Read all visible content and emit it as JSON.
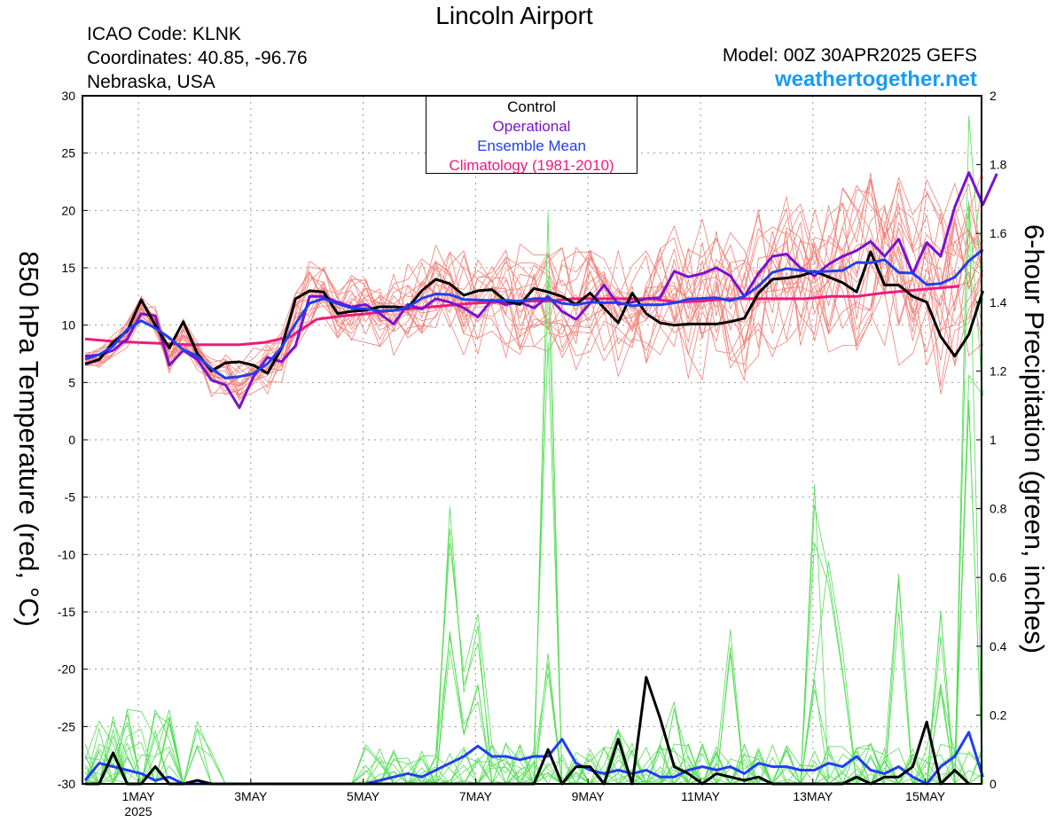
{
  "header": {
    "title": "Lincoln Airport",
    "icao": "ICAO Code: KLNK",
    "coordinates": "Coordinates: 40.85, -96.76",
    "region": "Nebraska, USA",
    "model": "Model: 00Z 30APR2025 GEFS",
    "site": "weathertogether.net"
  },
  "legend": {
    "control": "Control",
    "operational": "Operational",
    "ensemble_mean": "Ensemble Mean",
    "climatology": "Climatology (1981-2010)"
  },
  "colors": {
    "control": "#000000",
    "operational": "#7b12cf",
    "ensemble_mean": "#1f3ff0",
    "climatology": "#ee1a7c",
    "members_temp": "#f08078",
    "members_precip": "#55dd55",
    "site": "#1a9bf0"
  },
  "chart_data": {
    "type": "line",
    "ylabel": "850 hPa Temperature (red, °C)",
    "ylabel_right": "6-hour Precipitation (green, inches)",
    "ylim": [
      -30,
      30
    ],
    "ylim_right": [
      0,
      2
    ],
    "yticks": [
      "30",
      "25",
      "20",
      "15",
      "10",
      "5",
      "0",
      "-5",
      "-10",
      "-15",
      "-20",
      "-25",
      "-30"
    ],
    "yticks_right": [
      "2",
      "1.8",
      "1.6",
      "1.4",
      "1.2",
      "1",
      "0.8",
      "0.6",
      "0.4",
      "0.2",
      "0"
    ],
    "xticks": [
      "1MAY",
      "3MAY",
      "5MAY",
      "7MAY",
      "9MAY",
      "11MAY",
      "13MAY",
      "15MAY"
    ],
    "xtick_year": "2025",
    "grid": true,
    "legend_position": "top-center",
    "x_start": "30APR2025 00Z",
    "x_step_hours": 6,
    "temperature": {
      "control": [
        6.6,
        7.0,
        8.5,
        9.5,
        12.2,
        10.0,
        8.0,
        10.3,
        7.5,
        6.0,
        6.7,
        6.8,
        6.5,
        5.8,
        8.0,
        12.3,
        13.0,
        12.9,
        11.0,
        11.2,
        11.3,
        11.6,
        11.6,
        11.5,
        13.0,
        14.0,
        13.6,
        12.6,
        13.0,
        13.1,
        12.1,
        11.8,
        13.2,
        12.9,
        12.5,
        11.8,
        12.8,
        11.5,
        10.2,
        12.8,
        11.0,
        10.2,
        10.0,
        10.1,
        10.1,
        10.1,
        10.3,
        10.6,
        12.8,
        14.0,
        14.1,
        14.3,
        14.7,
        14.2,
        13.7,
        12.9,
        16.4,
        13.5,
        13.5,
        12.5,
        12.0,
        9.0,
        7.3,
        9.2,
        13.0
      ],
      "operational": [
        7.3,
        7.4,
        7.8,
        8.8,
        11.0,
        10.8,
        6.5,
        7.8,
        7.0,
        5.2,
        4.8,
        2.8,
        5.5,
        7.2,
        6.8,
        8.2,
        12.5,
        12.5,
        12.0,
        11.6,
        11.8,
        11.0,
        10.1,
        11.8,
        11.4,
        12.3,
        12.0,
        11.5,
        10.7,
        12.2,
        11.8,
        12.0,
        11.5,
        12.5,
        11.2,
        10.5,
        11.9,
        13.5,
        11.8,
        12.0,
        12.3,
        12.4,
        14.7,
        14.2,
        14.5,
        15.0,
        14.3,
        12.5,
        14.5,
        16.0,
        16.2,
        15.0,
        14.3,
        15.3,
        16.0,
        16.5,
        17.3,
        16.0,
        17.5,
        14.5,
        17.2,
        16.0,
        20.3,
        23.3,
        20.5,
        23.2
      ]
    },
    "precipitation": {
      "control": [
        0,
        0,
        0.09,
        0,
        0,
        0.05,
        0,
        0,
        0.01,
        0,
        0,
        0,
        0,
        0,
        0,
        0,
        0,
        0,
        0,
        0,
        0,
        0,
        0,
        0,
        0,
        0,
        0,
        0,
        0,
        0,
        0,
        0,
        0,
        0.1,
        0,
        0.05,
        0.05,
        0,
        0.13,
        0,
        0.31,
        0.19,
        0.05,
        0.03,
        0,
        0.03,
        0.02,
        0.01,
        0.02,
        0,
        0,
        0,
        0,
        0,
        0,
        0.02,
        0,
        0.02,
        0.02,
        0.05,
        0.18,
        0,
        0.04,
        0
      ],
      "ensemble_mean": [
        0.01,
        0.06,
        0.05,
        0.04,
        0.03,
        0.01,
        0.02,
        0,
        0,
        0,
        0,
        0,
        0,
        0,
        0,
        0,
        0,
        0,
        0,
        0,
        0,
        0.01,
        0.02,
        0.03,
        0.02,
        0.04,
        0.06,
        0.08,
        0.11,
        0.08,
        0.08,
        0.07,
        0.08,
        0.08,
        0.13,
        0.06,
        0.04,
        0.03,
        0.04,
        0.03,
        0.04,
        0.02,
        0.02,
        0.04,
        0.05,
        0.04,
        0.05,
        0.03,
        0.06,
        0.05,
        0.05,
        0.04,
        0.04,
        0.06,
        0.05,
        0.08,
        0.04,
        0.03,
        0.05,
        0.02,
        0,
        0.05,
        0.08,
        0.15,
        0.02
      ]
    },
    "climatology": [
      8.8,
      8.6,
      8.5,
      8.4,
      8.3,
      8.3,
      8.3,
      8.5,
      9.0,
      10.5,
      10.8,
      11.0,
      11.3,
      11.5,
      11.7,
      11.9,
      12.0,
      12.1,
      12.1,
      12.3,
      12.3,
      12.3,
      12.3,
      12.0,
      12.1,
      12.3,
      12.3,
      12.3,
      12.3,
      12.5,
      12.5,
      12.8,
      13.0,
      13.2,
      13.4
    ]
  }
}
